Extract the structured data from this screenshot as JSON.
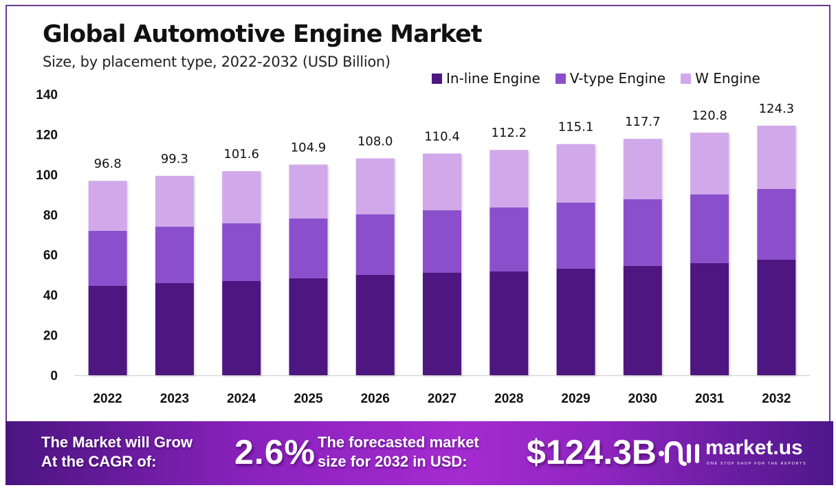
{
  "header": {
    "title": "Global Automotive Engine Market",
    "subtitle": "Size, by placement type, 2022-2032 (USD Billion)"
  },
  "colors": {
    "inline": "#4d1780",
    "vtype": "#8b4fcc",
    "w": "#d1a9ea",
    "frame": "#6a3a8e"
  },
  "chart_data": {
    "type": "bar",
    "stacked": true,
    "title": "Global Automotive Engine Market",
    "subtitle": "Size, by placement type, 2022-2032 (USD Billion)",
    "xlabel": "",
    "ylabel": "",
    "ylim": [
      0,
      140
    ],
    "yticks": [
      0,
      20,
      40,
      60,
      80,
      100,
      120,
      140
    ],
    "grid": false,
    "legend_position": "top-right",
    "categories": [
      "2022",
      "2023",
      "2024",
      "2025",
      "2026",
      "2027",
      "2028",
      "2029",
      "2030",
      "2031",
      "2032"
    ],
    "series": [
      {
        "name": "In-line Engine",
        "values": [
          44.5,
          45.9,
          46.9,
          48.3,
          50.0,
          51.0,
          51.7,
          53.1,
          54.5,
          55.8,
          57.5
        ]
      },
      {
        "name": "V-type Engine",
        "values": [
          27.4,
          28.1,
          28.8,
          29.8,
          30.1,
          31.2,
          31.9,
          32.9,
          33.2,
          34.3,
          35.3
        ]
      },
      {
        "name": "W Engine",
        "values": [
          24.9,
          25.3,
          25.9,
          26.8,
          27.9,
          28.2,
          28.6,
          29.1,
          30.0,
          30.7,
          31.5
        ]
      }
    ],
    "totals": [
      96.8,
      99.3,
      101.6,
      104.9,
      108.0,
      110.4,
      112.2,
      115.1,
      117.7,
      120.8,
      124.3
    ],
    "total_labels": [
      "96.8",
      "99.3",
      "101.6",
      "104.9",
      "108.0",
      "110.4",
      "112.2",
      "115.1",
      "117.7",
      "120.8",
      "124.3"
    ]
  },
  "banner": {
    "cagr_label_line1": "The Market will Grow",
    "cagr_label_line2": "At the CAGR of:",
    "cagr_value": "2.6%",
    "forecast_label_line1": "The forecasted market",
    "forecast_label_line2": "size for 2032 in USD:",
    "forecast_value": "$124.3B",
    "logo_icon": "market-us-logo-icon",
    "logo_text": "market.us",
    "logo_tagline": "ONE STOP SHOP FOR THE REPORTS"
  }
}
